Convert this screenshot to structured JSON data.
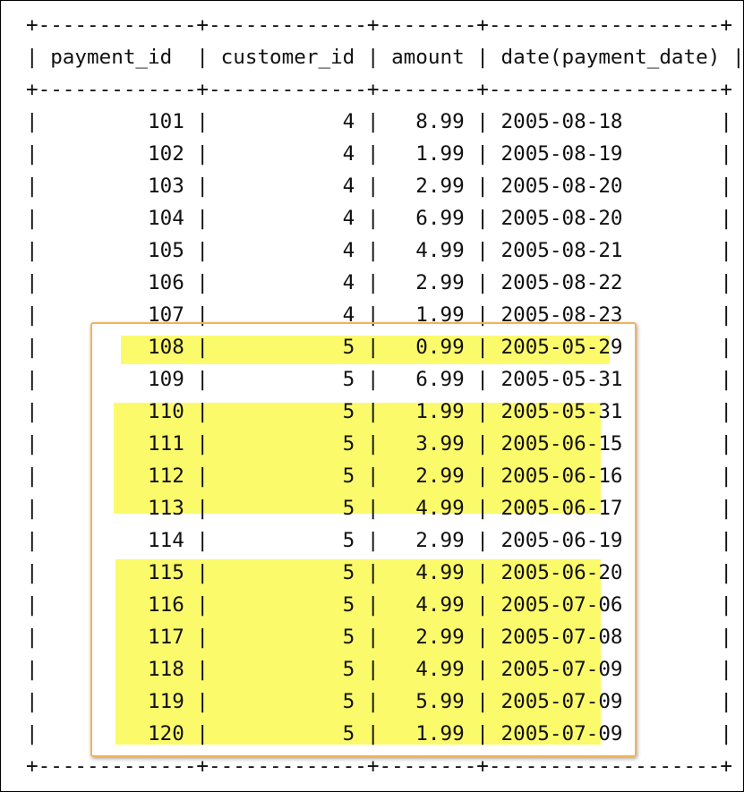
{
  "table": {
    "border_line": "+-------------+-------------+--------+-------------------+",
    "columns": [
      "payment_id",
      "customer_id",
      "amount",
      "date(payment_date)"
    ],
    "rows": [
      [
        "101",
        "4",
        "8.99",
        "2005-08-18"
      ],
      [
        "102",
        "4",
        "1.99",
        "2005-08-19"
      ],
      [
        "103",
        "4",
        "2.99",
        "2005-08-20"
      ],
      [
        "104",
        "4",
        "6.99",
        "2005-08-20"
      ],
      [
        "105",
        "4",
        "4.99",
        "2005-08-21"
      ],
      [
        "106",
        "4",
        "2.99",
        "2005-08-22"
      ],
      [
        "107",
        "4",
        "1.99",
        "2005-08-23"
      ],
      [
        "108",
        "5",
        "0.99",
        "2005-05-29"
      ],
      [
        "109",
        "5",
        "6.99",
        "2005-05-31"
      ],
      [
        "110",
        "5",
        "1.99",
        "2005-05-31"
      ],
      [
        "111",
        "5",
        "3.99",
        "2005-06-15"
      ],
      [
        "112",
        "5",
        "2.99",
        "2005-06-16"
      ],
      [
        "113",
        "5",
        "4.99",
        "2005-06-17"
      ],
      [
        "114",
        "5",
        "2.99",
        "2005-06-19"
      ],
      [
        "115",
        "5",
        "4.99",
        "2005-06-20"
      ],
      [
        "116",
        "5",
        "4.99",
        "2005-07-06"
      ],
      [
        "117",
        "5",
        "2.99",
        "2005-07-08"
      ],
      [
        "118",
        "5",
        "4.99",
        "2005-07-09"
      ],
      [
        "119",
        "5",
        "5.99",
        "2005-07-09"
      ],
      [
        "120",
        "5",
        "1.99",
        "2005-07-09"
      ]
    ],
    "highlighted_rows": [
      "108",
      "110",
      "111",
      "112",
      "113",
      "115",
      "116",
      "117",
      "118",
      "119",
      "120"
    ]
  },
  "colors": {
    "highlight": "#fbfa6b",
    "callout_border": "#f0b35a",
    "text": "#111111"
  }
}
